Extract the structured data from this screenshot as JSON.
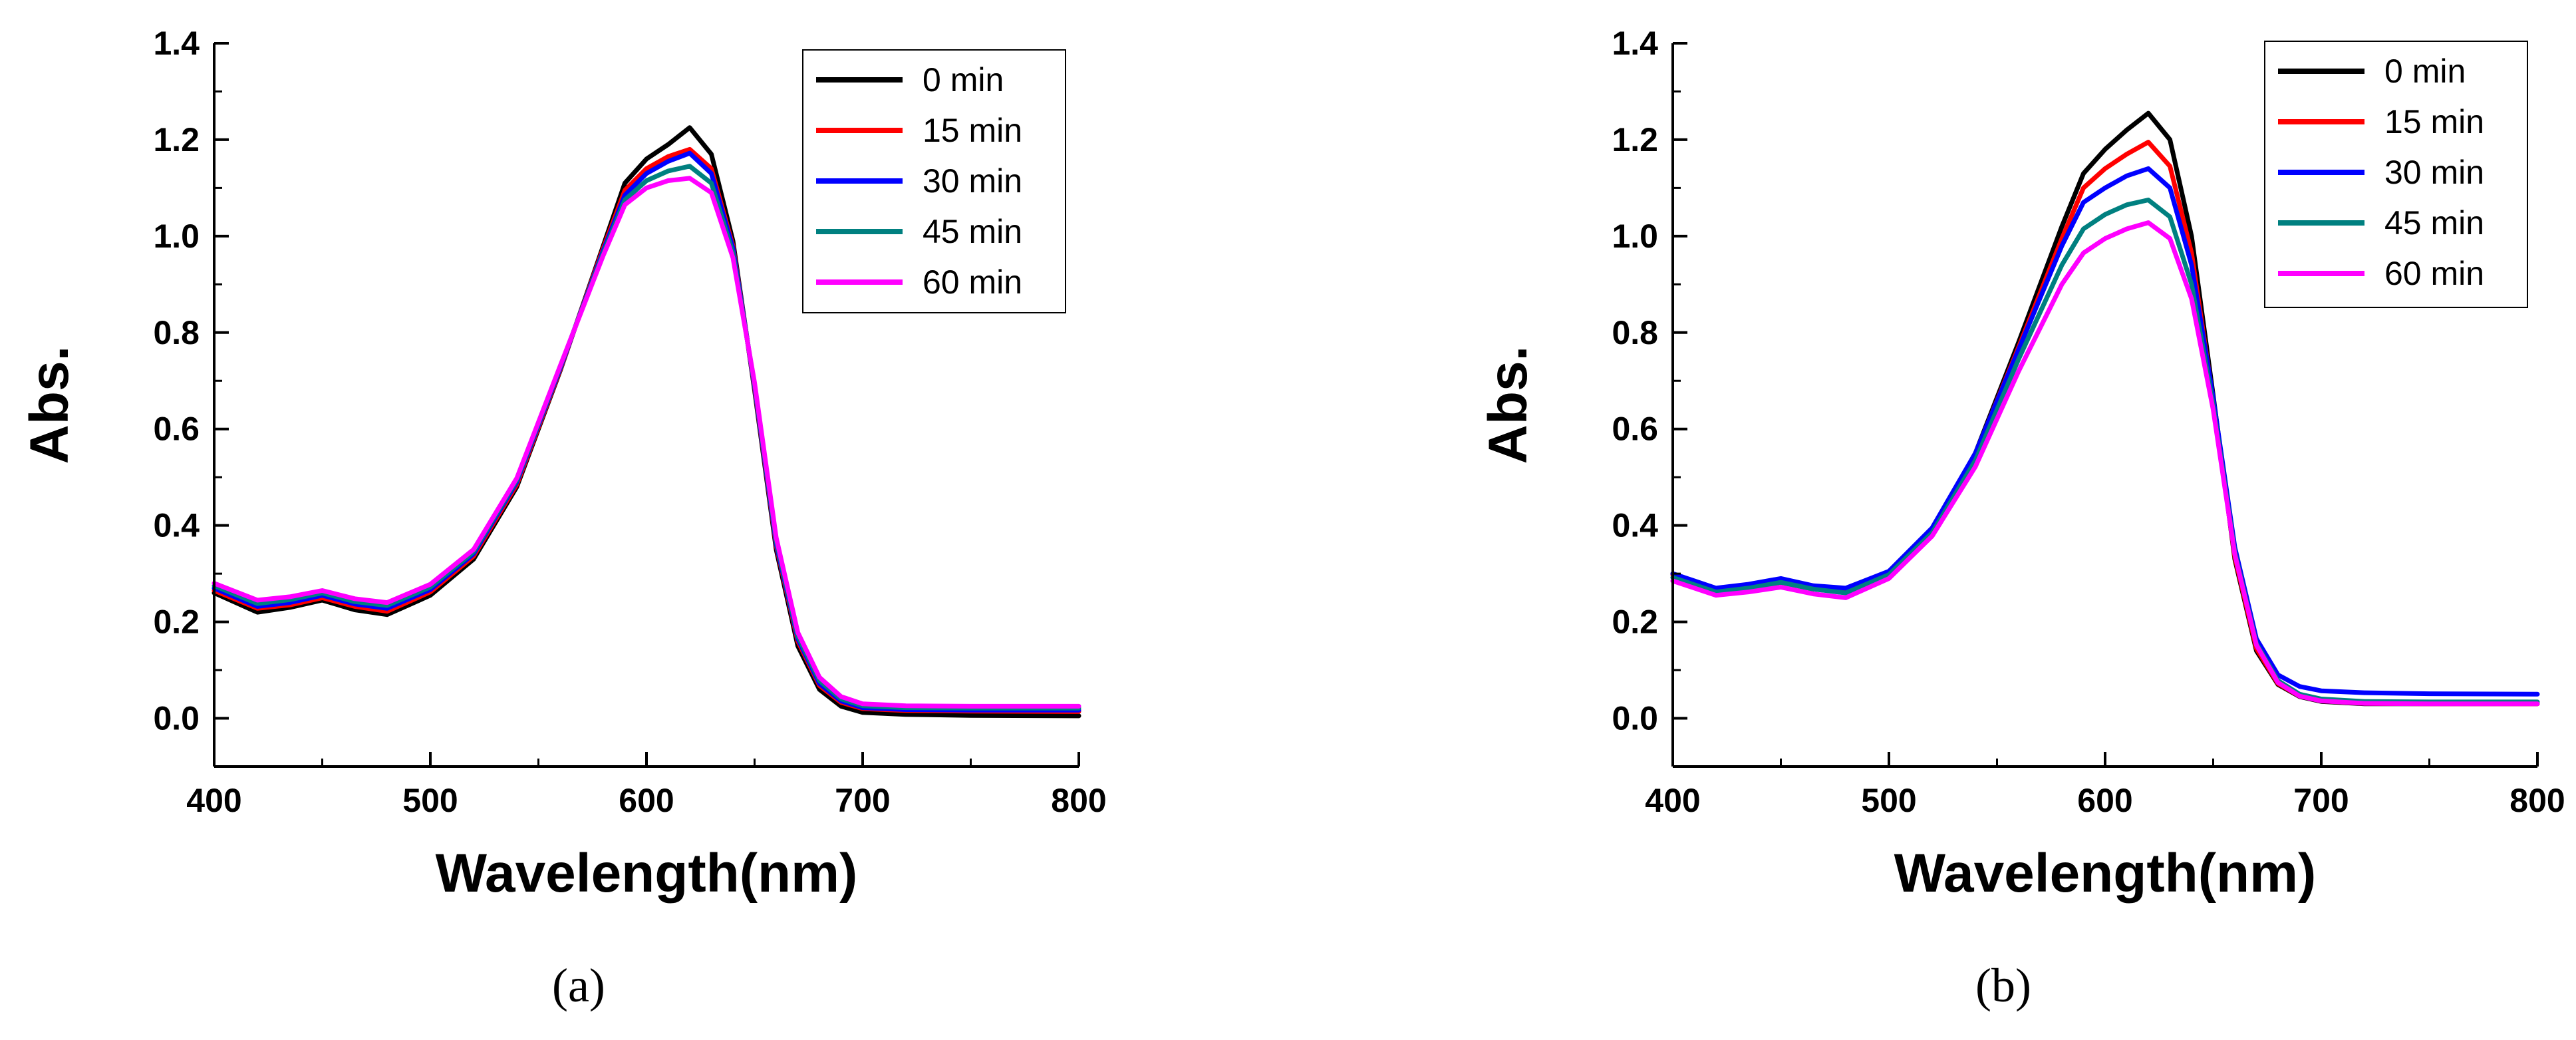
{
  "figure": {
    "captions": [
      "(a)",
      "(b)"
    ]
  },
  "chart_data": [
    {
      "type": "line",
      "panel": "a",
      "title": "",
      "xlabel": "Wavelength(nm)",
      "ylabel": "Abs.",
      "xlim": [
        400,
        800
      ],
      "ylim": [
        -0.1,
        1.4
      ],
      "xticks": [
        400,
        500,
        600,
        700,
        800
      ],
      "yticks": [
        0.0,
        0.2,
        0.4,
        0.6,
        0.8,
        1.0,
        1.2,
        1.4
      ],
      "xtick_labels": [
        "400",
        "500",
        "600",
        "700",
        "800"
      ],
      "ytick_labels": [
        "0.0",
        "0.2",
        "0.4",
        "0.6",
        "0.8",
        "1.0",
        "1.2",
        "1.4"
      ],
      "grid": false,
      "legend": "top-right",
      "x": [
        400,
        420,
        435,
        450,
        465,
        480,
        500,
        520,
        540,
        560,
        580,
        590,
        600,
        610,
        620,
        630,
        640,
        650,
        660,
        670,
        680,
        690,
        700,
        720,
        750,
        800
      ],
      "series": [
        {
          "name": "0 min",
          "color": "#000000",
          "values": [
            0.26,
            0.22,
            0.23,
            0.245,
            0.225,
            0.215,
            0.255,
            0.33,
            0.48,
            0.72,
            0.98,
            1.11,
            1.16,
            1.19,
            1.225,
            1.17,
            0.99,
            0.68,
            0.35,
            0.15,
            0.06,
            0.025,
            0.012,
            0.008,
            0.006,
            0.005
          ]
        },
        {
          "name": "15 min",
          "color": "#ff0000",
          "values": [
            0.265,
            0.228,
            0.235,
            0.25,
            0.232,
            0.222,
            0.262,
            0.336,
            0.485,
            0.722,
            0.975,
            1.095,
            1.14,
            1.165,
            1.18,
            1.14,
            0.98,
            0.685,
            0.358,
            0.16,
            0.068,
            0.033,
            0.02,
            0.016,
            0.015,
            0.014
          ]
        },
        {
          "name": "30 min",
          "color": "#0000ff",
          "values": [
            0.27,
            0.232,
            0.24,
            0.255,
            0.237,
            0.228,
            0.267,
            0.341,
            0.49,
            0.725,
            0.97,
            1.085,
            1.13,
            1.155,
            1.172,
            1.13,
            0.975,
            0.688,
            0.362,
            0.165,
            0.072,
            0.036,
            0.022,
            0.018,
            0.017,
            0.017
          ]
        },
        {
          "name": "45 min",
          "color": "#008080",
          "values": [
            0.275,
            0.238,
            0.246,
            0.26,
            0.242,
            0.234,
            0.272,
            0.345,
            0.494,
            0.728,
            0.965,
            1.075,
            1.115,
            1.135,
            1.145,
            1.11,
            0.965,
            0.692,
            0.368,
            0.17,
            0.078,
            0.04,
            0.026,
            0.022,
            0.021,
            0.021
          ]
        },
        {
          "name": "60 min",
          "color": "#ff00ff",
          "values": [
            0.28,
            0.245,
            0.252,
            0.265,
            0.248,
            0.24,
            0.278,
            0.35,
            0.498,
            0.73,
            0.96,
            1.065,
            1.1,
            1.115,
            1.12,
            1.09,
            0.955,
            0.696,
            0.375,
            0.178,
            0.085,
            0.045,
            0.03,
            0.026,
            0.025,
            0.025
          ]
        }
      ]
    },
    {
      "type": "line",
      "panel": "b",
      "title": "",
      "xlabel": "Wavelength(nm)",
      "ylabel": "Abs.",
      "xlim": [
        400,
        800
      ],
      "ylim": [
        -0.1,
        1.4
      ],
      "xticks": [
        400,
        500,
        600,
        700,
        800
      ],
      "yticks": [
        0.0,
        0.2,
        0.4,
        0.6,
        0.8,
        1.0,
        1.2,
        1.4
      ],
      "xtick_labels": [
        "400",
        "500",
        "600",
        "700",
        "800"
      ],
      "ytick_labels": [
        "0.0",
        "0.2",
        "0.4",
        "0.6",
        "0.8",
        "1.0",
        "1.2",
        "1.4"
      ],
      "grid": false,
      "legend": "top-right",
      "x": [
        400,
        420,
        435,
        450,
        465,
        480,
        500,
        520,
        540,
        560,
        580,
        590,
        600,
        610,
        620,
        630,
        640,
        650,
        660,
        670,
        680,
        690,
        700,
        720,
        750,
        800
      ],
      "series": [
        {
          "name": "0 min",
          "color": "#000000",
          "values": [
            0.3,
            0.262,
            0.27,
            0.282,
            0.268,
            0.262,
            0.3,
            0.39,
            0.55,
            0.78,
            1.02,
            1.13,
            1.18,
            1.22,
            1.255,
            1.2,
            1.0,
            0.67,
            0.33,
            0.14,
            0.07,
            0.045,
            0.035,
            0.03,
            0.03,
            0.03
          ]
        },
        {
          "name": "15 min",
          "color": "#ff0000",
          "values": [
            0.298,
            0.262,
            0.27,
            0.282,
            0.268,
            0.262,
            0.3,
            0.39,
            0.548,
            0.77,
            0.995,
            1.1,
            1.14,
            1.17,
            1.195,
            1.145,
            0.965,
            0.66,
            0.335,
            0.145,
            0.072,
            0.046,
            0.036,
            0.031,
            0.03,
            0.03
          ]
        },
        {
          "name": "30 min",
          "color": "#0000ff",
          "values": [
            0.3,
            0.27,
            0.278,
            0.29,
            0.275,
            0.27,
            0.305,
            0.395,
            0.55,
            0.765,
            0.98,
            1.07,
            1.1,
            1.125,
            1.14,
            1.1,
            0.94,
            0.665,
            0.355,
            0.165,
            0.09,
            0.066,
            0.057,
            0.053,
            0.051,
            0.05
          ]
        },
        {
          "name": "45 min",
          "color": "#008080",
          "values": [
            0.292,
            0.262,
            0.27,
            0.282,
            0.268,
            0.26,
            0.298,
            0.385,
            0.535,
            0.745,
            0.94,
            1.015,
            1.045,
            1.065,
            1.075,
            1.04,
            0.9,
            0.65,
            0.345,
            0.155,
            0.078,
            0.05,
            0.04,
            0.035,
            0.034,
            0.034
          ]
        },
        {
          "name": "60 min",
          "color": "#ff00ff",
          "values": [
            0.285,
            0.255,
            0.262,
            0.272,
            0.258,
            0.25,
            0.29,
            0.378,
            0.522,
            0.72,
            0.9,
            0.965,
            0.995,
            1.015,
            1.028,
            0.995,
            0.87,
            0.64,
            0.34,
            0.152,
            0.074,
            0.046,
            0.036,
            0.031,
            0.03,
            0.03
          ]
        }
      ]
    }
  ]
}
